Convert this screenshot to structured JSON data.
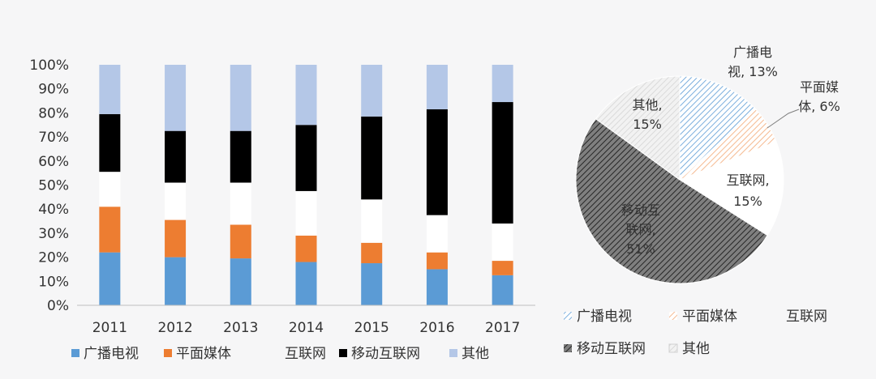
{
  "colors": {
    "tv": "#5b9bd5",
    "print": "#ed7d31",
    "internet": "#ffffff",
    "mobile": "#000000",
    "other": "#b4c7e7",
    "background": "#f6f6f7",
    "axis": "#bfbfbf"
  },
  "chart_data": [
    {
      "type": "bar",
      "stacked": true,
      "percent": true,
      "categories": [
        "2011",
        "2012",
        "2013",
        "2014",
        "2015",
        "2016",
        "2017"
      ],
      "series": [
        {
          "name": "广播电视",
          "key": "tv",
          "values": [
            22,
            20,
            19.5,
            18,
            17.5,
            15,
            12.5
          ]
        },
        {
          "name": "平面媒体",
          "key": "print",
          "values": [
            19,
            15.5,
            14,
            11,
            8.5,
            7,
            6
          ]
        },
        {
          "name": "互联网",
          "key": "internet",
          "values": [
            14.5,
            15.5,
            17.5,
            18.5,
            18,
            15.5,
            15.5
          ]
        },
        {
          "name": "移动互联网",
          "key": "mobile",
          "values": [
            24,
            21.5,
            21.5,
            27.5,
            34.5,
            44,
            50.5
          ]
        },
        {
          "name": "其他",
          "key": "other",
          "values": [
            20.5,
            27.5,
            27.5,
            25,
            21.5,
            18.5,
            15.5
          ]
        }
      ],
      "y_ticks": [
        "0%",
        "10%",
        "20%",
        "30%",
        "40%",
        "50%",
        "60%",
        "70%",
        "80%",
        "90%",
        "100%"
      ],
      "ylim": [
        0,
        100
      ],
      "grid": false,
      "legend": "bottom"
    },
    {
      "type": "pie",
      "slices": [
        {
          "name": "广播电视",
          "key": "tv",
          "value": 13,
          "label": [
            "广播电",
            "视, 13%"
          ]
        },
        {
          "name": "平面媒体",
          "key": "print",
          "value": 6,
          "label": [
            "平面媒",
            "体, 6%"
          ]
        },
        {
          "name": "互联网",
          "key": "internet",
          "value": 15,
          "label": [
            "互联网,",
            "15%"
          ]
        },
        {
          "name": "移动互联网",
          "key": "mobile",
          "value": 51,
          "label": [
            "移动互",
            "联网,",
            "51%"
          ]
        },
        {
          "name": "其他",
          "key": "other",
          "value": 15,
          "label": [
            "其他,",
            "15%"
          ]
        }
      ],
      "legend": "bottom"
    }
  ],
  "bar_legend": [
    {
      "key": "tv",
      "label": "广播电视"
    },
    {
      "key": "print",
      "label": "平面媒体"
    },
    {
      "key": "internet",
      "label": "互联网"
    },
    {
      "key": "mobile",
      "label": "移动互联网"
    },
    {
      "key": "other",
      "label": "其他"
    }
  ],
  "pie_legend": [
    {
      "key": "tv",
      "label": "广播电视"
    },
    {
      "key": "print",
      "label": "平面媒体"
    },
    {
      "key": "internet",
      "label": "互联网"
    },
    {
      "key": "mobile",
      "label": "移动互联网"
    },
    {
      "key": "other",
      "label": "其他"
    }
  ]
}
